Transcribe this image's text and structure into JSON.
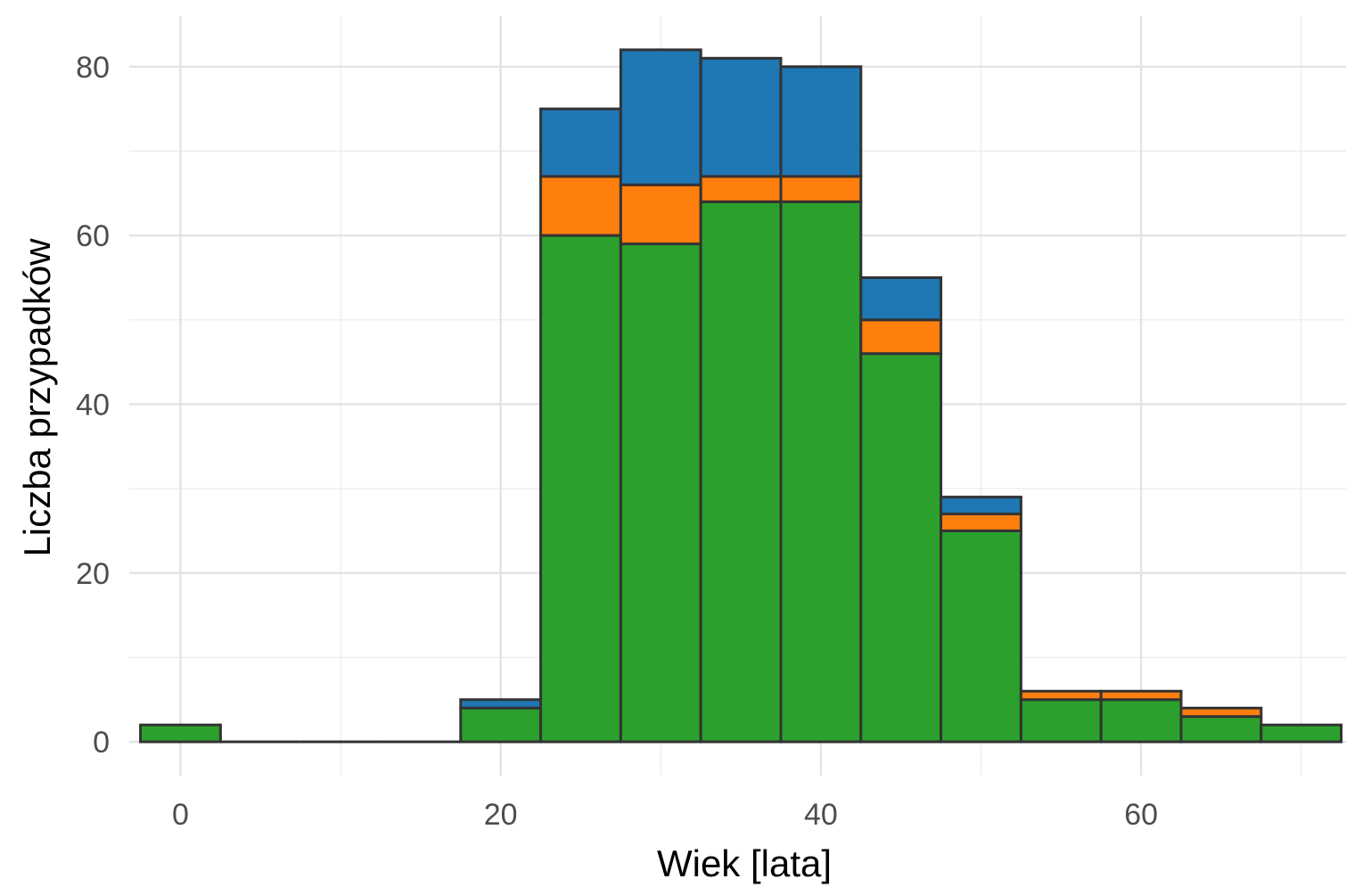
{
  "chart_data": {
    "type": "bar",
    "stacked": true,
    "title": "",
    "xlabel": "Wiek [lata]",
    "ylabel": "Liczba przypadków",
    "xlim": [
      -3.2,
      72.8
    ],
    "ylim": [
      -4,
      86
    ],
    "x_ticks": [
      0,
      20,
      40,
      60
    ],
    "y_ticks": [
      0,
      20,
      40,
      60,
      80
    ],
    "grid": true,
    "legend": "none",
    "bin_width": 5,
    "bin_centers": [
      0,
      5,
      10,
      15,
      20,
      25,
      30,
      35,
      40,
      45,
      50,
      55,
      60,
      65,
      70
    ],
    "series": [
      {
        "color": "#2ca02c",
        "values": [
          2,
          0,
          0,
          0,
          4,
          60,
          59,
          64,
          64,
          46,
          25,
          5,
          5,
          3,
          2
        ]
      },
      {
        "color": "#ff7f0e",
        "values": [
          0,
          0,
          0,
          0,
          0,
          7,
          7,
          3,
          3,
          4,
          2,
          1,
          1,
          1,
          0
        ]
      },
      {
        "color": "#1f77b4",
        "values": [
          0,
          0,
          0,
          0,
          1,
          8,
          16,
          14,
          13,
          5,
          2,
          0,
          0,
          0,
          0
        ]
      }
    ],
    "bar_outline_color": "#333333"
  }
}
